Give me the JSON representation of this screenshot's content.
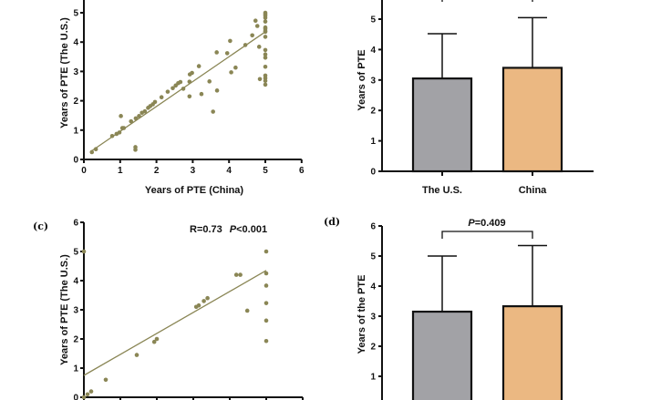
{
  "chart_data": [
    {
      "panel": "a",
      "type": "scatter",
      "xlabel": "Years of  PTE (China)",
      "ylabel": "Years of  PTE (The U.S.)",
      "xlim": [
        0,
        6
      ],
      "ylim": [
        0,
        6
      ],
      "xticks": [
        "0",
        "1",
        "2",
        "3",
        "4",
        "5",
        "6"
      ],
      "yticks": [
        "0",
        "1",
        "2",
        "3",
        "4",
        "5"
      ],
      "grid": false,
      "color": "#8a8655",
      "trendline": [
        [
          0.2,
          0.28
        ],
        [
          5,
          4.35
        ]
      ],
      "points": [
        [
          0.22,
          0.25
        ],
        [
          0.33,
          0.35
        ],
        [
          1.02,
          1.48
        ],
        [
          0.78,
          0.8
        ],
        [
          0.9,
          0.87
        ],
        [
          0.98,
          0.92
        ],
        [
          1.06,
          1.07
        ],
        [
          1.1,
          1.07
        ],
        [
          1.3,
          1.3
        ],
        [
          1.42,
          0.42
        ],
        [
          1.42,
          0.33
        ],
        [
          1.43,
          1.4
        ],
        [
          1.52,
          1.48
        ],
        [
          1.6,
          1.59
        ],
        [
          1.68,
          1.64
        ],
        [
          1.77,
          1.76
        ],
        [
          1.83,
          1.82
        ],
        [
          1.9,
          1.88
        ],
        [
          1.96,
          1.96
        ],
        [
          2.14,
          2.12
        ],
        [
          2.31,
          2.31
        ],
        [
          2.45,
          2.43
        ],
        [
          2.53,
          2.52
        ],
        [
          2.6,
          2.6
        ],
        [
          2.66,
          2.64
        ],
        [
          2.74,
          2.41
        ],
        [
          2.91,
          2.65
        ],
        [
          2.92,
          2.9
        ],
        [
          2.98,
          2.95
        ],
        [
          2.91,
          2.15
        ],
        [
          3.17,
          3.18
        ],
        [
          3.24,
          2.23
        ],
        [
          3.46,
          2.66
        ],
        [
          3.56,
          1.63
        ],
        [
          3.66,
          3.65
        ],
        [
          3.67,
          2.35
        ],
        [
          3.95,
          3.62
        ],
        [
          4.03,
          4.04
        ],
        [
          4.06,
          2.97
        ],
        [
          4.18,
          3.13
        ],
        [
          4.45,
          3.9
        ],
        [
          4.64,
          4.23
        ],
        [
          4.73,
          4.73
        ],
        [
          4.78,
          4.55
        ],
        [
          4.83,
          3.84
        ],
        [
          4.85,
          2.74
        ],
        [
          5,
          5.0
        ],
        [
          5,
          4.95
        ],
        [
          5,
          4.9
        ],
        [
          5,
          4.83
        ],
        [
          5,
          4.7
        ],
        [
          5,
          4.5
        ],
        [
          5,
          4.45
        ],
        [
          5,
          4.38
        ],
        [
          5,
          4.35
        ],
        [
          5,
          4.18
        ],
        [
          5,
          3.73
        ],
        [
          5,
          3.58
        ],
        [
          5,
          3.47
        ],
        [
          5,
          3.16
        ],
        [
          5,
          2.86
        ],
        [
          5,
          2.77
        ],
        [
          5,
          2.68
        ],
        [
          5,
          2.55
        ]
      ]
    },
    {
      "panel": "b",
      "type": "bar",
      "ylabel": "Years of PTE",
      "categories": [
        "The U.S.",
        "China"
      ],
      "values": [
        3.05,
        3.4
      ],
      "error_upper": [
        4.52,
        5.05
      ],
      "colors": [
        "#a2a2a6",
        "#ebb882"
      ],
      "ylim": [
        0,
        6
      ],
      "yticks": [
        "0",
        "1",
        "2",
        "3",
        "4",
        "5"
      ]
    },
    {
      "panel": "c",
      "label": "(c)",
      "type": "scatter",
      "ylabel": "Years of PTE (The U.S.)",
      "annotation": {
        "r": "R=0.73",
        "p_italic": "P",
        "p_rest": "<0.001"
      },
      "xlim": [
        0,
        6
      ],
      "ylim": [
        0,
        6
      ],
      "yticks": [
        "0",
        "1",
        "2",
        "3",
        "4",
        "5",
        "6"
      ],
      "grid": false,
      "color": "#8a8655",
      "trendline": [
        [
          0,
          0.75
        ],
        [
          5,
          4.35
        ]
      ],
      "points": [
        [
          0,
          5.0
        ],
        [
          0,
          0
        ],
        [
          0.1,
          0.1
        ],
        [
          0.2,
          0.2
        ],
        [
          0.6,
          0.6
        ],
        [
          1.45,
          1.45
        ],
        [
          1.93,
          1.9
        ],
        [
          2.0,
          2.0
        ],
        [
          3.08,
          3.1
        ],
        [
          3.15,
          3.15
        ],
        [
          3.29,
          3.3
        ],
        [
          3.39,
          3.4
        ],
        [
          4.18,
          4.2
        ],
        [
          4.29,
          4.2
        ],
        [
          4.48,
          2.97
        ],
        [
          5,
          5.0
        ],
        [
          5,
          4.25
        ],
        [
          5,
          3.83
        ],
        [
          5,
          3.23
        ],
        [
          5,
          2.63
        ],
        [
          5,
          1.93
        ]
      ]
    },
    {
      "panel": "d",
      "label": "(d)",
      "type": "bar",
      "ylabel": "Years of the PTE",
      "values": [
        3.15,
        3.33
      ],
      "error_upper": [
        5.0,
        5.35
      ],
      "colors": [
        "#a2a2a6",
        "#ebb882"
      ],
      "significance": {
        "p_italic": "P",
        "p_rest": "=0.409"
      },
      "ylim": [
        0,
        6
      ],
      "yticks": [
        "1",
        "2",
        "3",
        "4",
        "5",
        "6"
      ]
    }
  ]
}
